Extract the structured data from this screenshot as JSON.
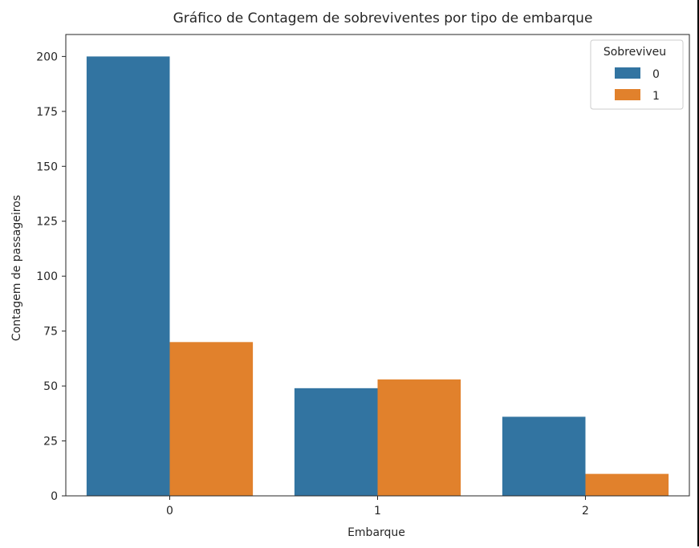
{
  "chart_data": {
    "type": "bar",
    "title": "Gráfico de Contagem de sobreviventes por tipo de embarque",
    "xlabel": "Embarque",
    "ylabel": "Contagem de passageiros",
    "categories": [
      "0",
      "1",
      "2"
    ],
    "yticks": [
      0,
      25,
      50,
      75,
      100,
      125,
      150,
      175,
      200
    ],
    "ylim": [
      0,
      210
    ],
    "grid": false,
    "legend": {
      "title": "Sobreviveu",
      "placement": "top-right"
    },
    "series": [
      {
        "name": "0",
        "color": "#3274a1",
        "values": [
          200,
          49,
          36
        ]
      },
      {
        "name": "1",
        "color": "#e1812c",
        "values": [
          70,
          53,
          10
        ]
      }
    ]
  }
}
